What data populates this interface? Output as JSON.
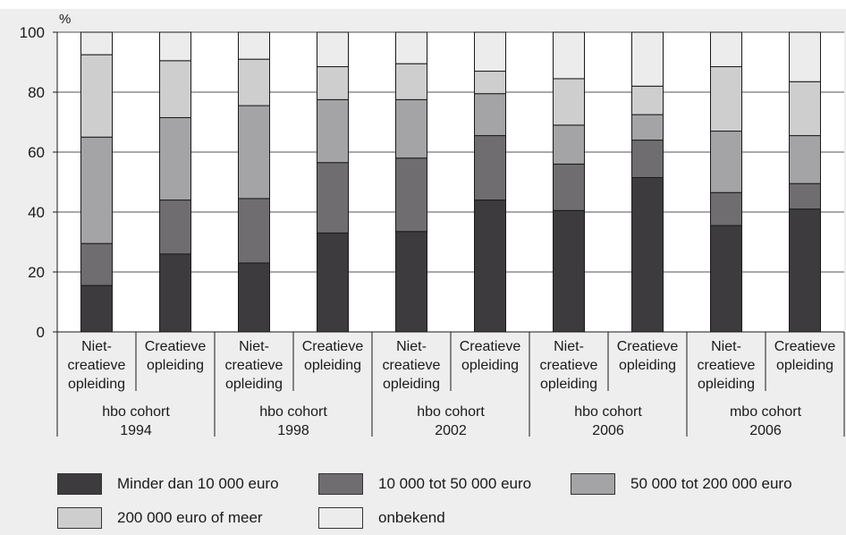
{
  "chart_data": {
    "type": "bar",
    "stacked": true,
    "ylabel": "%",
    "ylim": [
      0,
      100
    ],
    "yticks": [
      0,
      20,
      40,
      60,
      80,
      100
    ],
    "grid": true,
    "legend_position": "bottom",
    "groups": [
      {
        "label_line1": "hbo cohort",
        "label_line2": "1994"
      },
      {
        "label_line1": "hbo cohort",
        "label_line2": "1998"
      },
      {
        "label_line1": "hbo cohort",
        "label_line2": "2002"
      },
      {
        "label_line1": "hbo cohort",
        "label_line2": "2006"
      },
      {
        "label_line1": "mbo cohort",
        "label_line2": "2006"
      }
    ],
    "categories": [
      {
        "group": 0,
        "lines": [
          "Niet-",
          "creatieve",
          "opleiding"
        ]
      },
      {
        "group": 0,
        "lines": [
          "Creatieve",
          "opleiding"
        ]
      },
      {
        "group": 1,
        "lines": [
          "Niet-",
          "creatieve",
          "opleiding"
        ]
      },
      {
        "group": 1,
        "lines": [
          "Creatieve",
          "opleiding"
        ]
      },
      {
        "group": 2,
        "lines": [
          "Niet-",
          "creatieve",
          "opleiding"
        ]
      },
      {
        "group": 2,
        "lines": [
          "Creatieve",
          "opleiding"
        ]
      },
      {
        "group": 3,
        "lines": [
          "Niet-",
          "creatieve",
          "opleiding"
        ]
      },
      {
        "group": 3,
        "lines": [
          "Creatieve",
          "opleiding"
        ]
      },
      {
        "group": 4,
        "lines": [
          "Niet-",
          "creatieve",
          "opleiding"
        ]
      },
      {
        "group": 4,
        "lines": [
          "Creatieve",
          "opleiding"
        ]
      }
    ],
    "series": [
      {
        "name": "Minder dan 10 000 euro",
        "color": "#3d3b3e",
        "values": [
          15.5,
          26,
          23,
          33,
          33.5,
          44,
          40.5,
          51.5,
          35.5,
          41
        ]
      },
      {
        "name": "10 000 tot 50 000 euro",
        "color": "#6f6d70",
        "values": [
          14,
          18,
          21.5,
          23.5,
          24.5,
          21.5,
          15.5,
          12.5,
          11,
          8.5
        ]
      },
      {
        "name": "50 000 tot 200 000 euro",
        "color": "#a4a3a5",
        "values": [
          35.5,
          27.5,
          31,
          21,
          19.5,
          14,
          13,
          8.5,
          20.5,
          16
        ]
      },
      {
        "name": "200 000 euro of meer",
        "color": "#cfcecf",
        "values": [
          27.5,
          19,
          15.5,
          11,
          12,
          7.5,
          15.5,
          9.5,
          21.5,
          18
        ]
      },
      {
        "name": "onbekend",
        "color": "#ececec",
        "values": [
          7.5,
          9.5,
          9,
          11.5,
          10.5,
          13,
          15.5,
          18,
          11.5,
          16.5
        ]
      }
    ]
  }
}
